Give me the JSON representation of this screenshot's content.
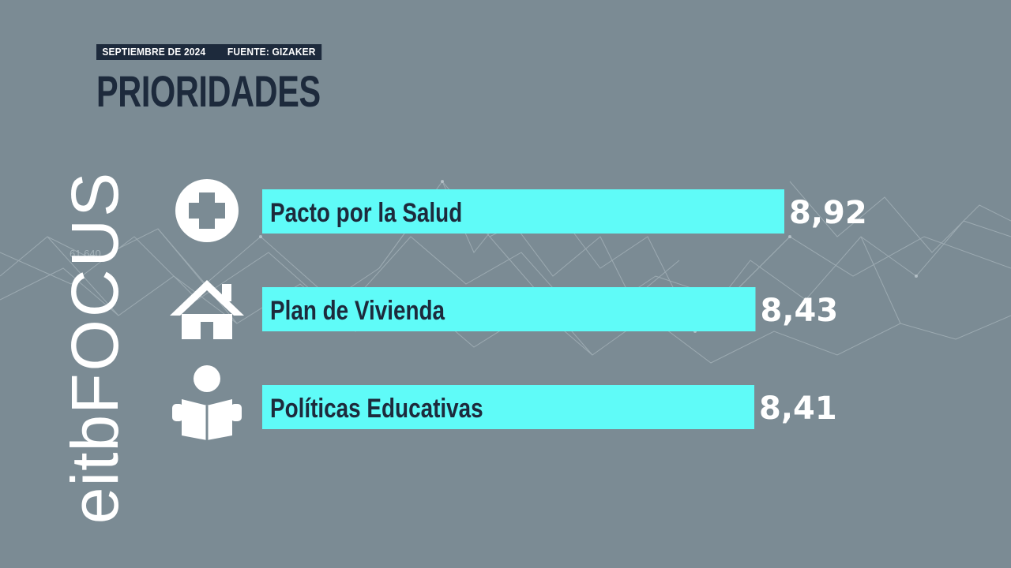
{
  "header": {
    "date": "SEPTIEMBRE DE 2024",
    "source": "FUENTE: GIZAKER",
    "title": "PRIORIDADES"
  },
  "logo": {
    "brand": "eitb",
    "product": "FOCUS"
  },
  "background": {
    "ticker_text": "61.640"
  },
  "colors": {
    "background": "#7b8b94",
    "bar_fill": "#5ffbf8",
    "title_text": "#1d2a3c",
    "value_text": "#ffffff",
    "icon": "#ffffff"
  },
  "chart_data": {
    "type": "bar",
    "orientation": "horizontal",
    "categories": [
      "Pacto por la Salud",
      "Plan de Vivienda",
      "Políticas Educativas"
    ],
    "values": [
      8.92,
      8.43,
      8.41
    ],
    "value_labels": [
      "8,92",
      "8,43",
      "8,41"
    ],
    "icons": [
      "medical-cross-icon",
      "house-icon",
      "reading-person-icon"
    ],
    "title": "PRIORIDADES",
    "xlabel": "",
    "ylabel": "",
    "grid": false,
    "legend": "none"
  }
}
